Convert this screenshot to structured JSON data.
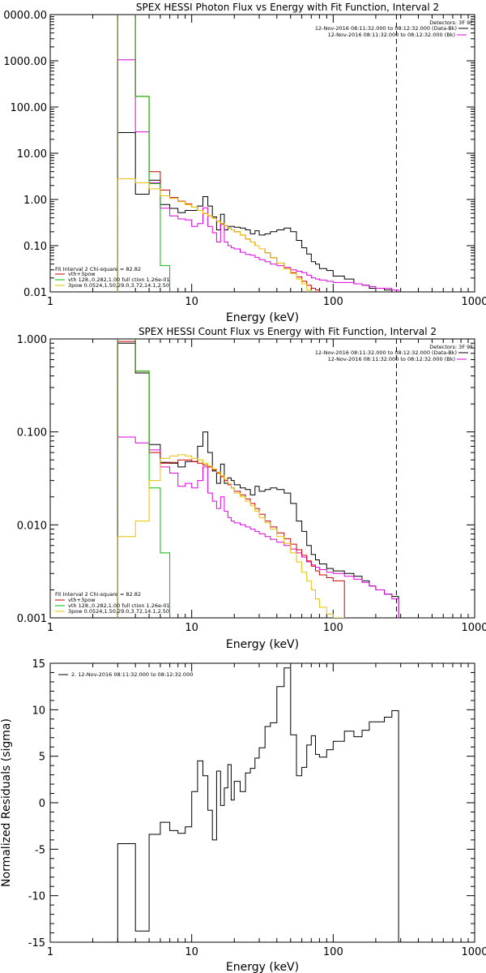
{
  "colors": {
    "data": "#000000",
    "total_fit": "#cc0000",
    "thermal": "#00c000",
    "power_law": "#e6c000",
    "background": "#e000e0",
    "threshold": "#cc6600"
  },
  "chart_data": [
    {
      "type": "line",
      "title": "SPEX HESSI Photon Flux vs Energy with Fit Function, Interval 2",
      "xlabel": "Energy (keV)",
      "ylabel": "",
      "xscale": "log",
      "yscale": "log",
      "xlim": [
        1,
        1000
      ],
      "ylim": [
        0.01,
        10000
      ],
      "x_tick_labels": [
        "1",
        "10",
        "100",
        "1000"
      ],
      "y_tick_labels": [
        "0.01",
        "0.10",
        "1.00",
        "10.00",
        "100.00",
        "1000.00",
        "0000.00"
      ],
      "detector_label": "Detectors: 3F 9F",
      "legend_top": [
        {
          "text": "12-Nov-2016 08:11:32.000 to 08:12:32.000 (Data-Bk)",
          "color": "#000000"
        },
        {
          "text": "12-Nov-2016 08:11:32.000 to 08:12:32.000 (Bk)",
          "color": "#e000e0"
        }
      ],
      "fit_label": "Fit Interval 2   Chi-square = 82.82",
      "legend_bottom": [
        {
          "text": "vth+3pow",
          "color": "#cc0000"
        },
        {
          "text": "vth 128.,0.282,1.00  full ction 1.26e-01",
          "color": "#00c000"
        },
        {
          "text": "3pow 0.0524,1.50,29.0,3.72,14.1,2.50",
          "color": "#e6c000"
        }
      ],
      "vline_dashed_x": 280,
      "vline_dotted_x": 3,
      "edges": [
        3,
        4,
        5,
        6,
        7,
        8,
        9,
        10,
        11,
        12,
        13,
        14,
        15,
        16,
        17,
        18,
        19,
        20,
        22,
        24,
        26,
        28,
        30,
        33,
        36,
        40,
        45,
        50,
        55,
        60,
        65,
        70,
        75,
        80,
        90,
        100,
        120,
        140,
        160,
        180,
        200,
        230,
        260,
        290
      ],
      "series": [
        {
          "name": "data",
          "color": "#000000",
          "values": [
            28,
            1.3,
            2.6,
            0.78,
            0.64,
            0.52,
            0.58,
            0.58,
            0.72,
            1.15,
            0.72,
            0.42,
            0.22,
            0.48,
            0.22,
            0.26,
            0.26,
            0.25,
            0.24,
            0.22,
            0.18,
            0.21,
            0.17,
            0.18,
            0.2,
            0.22,
            0.24,
            0.2,
            0.13,
            0.09,
            0.066,
            0.045,
            0.04,
            0.032,
            0.029,
            0.022,
            0.019,
            0.015,
            0.014,
            0.012,
            0.012,
            0.011,
            0.01
          ]
        },
        {
          "name": "background",
          "color": "#e000e0",
          "values": [
            1050,
            29,
            2.3,
            0.65,
            0.44,
            0.38,
            0.36,
            0.26,
            0.3,
            0.66,
            0.26,
            0.19,
            0.12,
            0.29,
            0.12,
            0.1,
            0.09,
            0.085,
            0.072,
            0.065,
            0.062,
            0.056,
            0.05,
            0.045,
            0.04,
            0.037,
            0.034,
            0.03,
            0.028,
            0.026,
            0.023,
            0.02,
            0.019,
            0.018,
            0.017,
            0.016,
            0.016,
            0.015,
            0.014,
            0.013,
            0.012,
            0.012,
            0.011
          ]
        },
        {
          "name": "total_fit",
          "color": "#cc0000",
          "values": [
            180000,
            170,
            4,
            1.6,
            1.1,
            0.92,
            0.8,
            0.68,
            0.58,
            0.5,
            0.44,
            0.39,
            0.34,
            0.3,
            0.27,
            0.24,
            0.22,
            0.2,
            0.17,
            0.14,
            0.12,
            0.1,
            0.085,
            0.07,
            0.055,
            0.042,
            0.032,
            0.026,
            0.021,
            0.017,
            0.014,
            0.012,
            0.011,
            0.0095,
            0.0085
          ]
        },
        {
          "name": "thermal",
          "color": "#00c000",
          "values": [
            180000,
            170,
            2.2,
            0.037
          ]
        },
        {
          "name": "power_law",
          "color": "#e6c000",
          "values": [
            2.8,
            2.3,
            1.7,
            1.2,
            1.05,
            0.9,
            0.78,
            0.68,
            0.58,
            0.5,
            0.44,
            0.39,
            0.34,
            0.3,
            0.27,
            0.24,
            0.22,
            0.2,
            0.17,
            0.14,
            0.12,
            0.1,
            0.085,
            0.07,
            0.055,
            0.042,
            0.032,
            0.025,
            0.019,
            0.015,
            0.011,
            0.008
          ]
        }
      ]
    },
    {
      "type": "line",
      "title": "SPEX HESSI Count Flux vs Energy with Fit Function, Interval 2",
      "xlabel": "Energy (keV)",
      "ylabel": "",
      "xscale": "log",
      "yscale": "log",
      "xlim": [
        1,
        1000
      ],
      "ylim": [
        0.001,
        1
      ],
      "x_tick_labels": [
        "1",
        "10",
        "100",
        "1000"
      ],
      "y_tick_labels": [
        "0.001",
        "0.010",
        "0.100",
        "1.000"
      ],
      "detector_label": "Detectors: 3F 9F",
      "legend_top": [
        {
          "text": "12-Nov-2016 08:11:32.000 to 08:12:32.000 (Data-Bk)",
          "color": "#000000"
        },
        {
          "text": "12-Nov-2016 08:11:32.000 to 08:12:32.000 (Bk)",
          "color": "#e000e0"
        }
      ],
      "fit_label": "Fit Interval 2   Chi-square = 82.82",
      "legend_bottom": [
        {
          "text": "vth+3pow",
          "color": "#cc0000"
        },
        {
          "text": "vth 128.,0.282,1.00  full ction 1.26e-01",
          "color": "#00c000"
        },
        {
          "text": "3pow 0.0524,1.50,29.0,3.72,14.1,2.50",
          "color": "#e6c000"
        }
      ],
      "vline_dashed_x": 280,
      "vline_dotted_x": 3,
      "edges": [
        3,
        4,
        5,
        6,
        7,
        8,
        9,
        10,
        11,
        12,
        13,
        14,
        15,
        16,
        17,
        18,
        19,
        20,
        22,
        24,
        26,
        28,
        30,
        33,
        36,
        40,
        45,
        50,
        55,
        60,
        65,
        70,
        75,
        80,
        90,
        100,
        120,
        140,
        160,
        180,
        200,
        230,
        260,
        290
      ],
      "series": [
        {
          "name": "data",
          "color": "#000000",
          "values": [
            0.9,
            0.43,
            0.073,
            0.047,
            0.046,
            0.042,
            0.048,
            0.048,
            0.07,
            0.1,
            0.06,
            0.038,
            0.028,
            0.045,
            0.028,
            0.032,
            0.03,
            0.027,
            0.025,
            0.024,
            0.021,
            0.026,
            0.023,
            0.024,
            0.025,
            0.024,
            0.022,
            0.017,
            0.011,
            0.0085,
            0.006,
            0.0048,
            0.0042,
            0.0038,
            0.0034,
            0.0032,
            0.003,
            0.0028,
            0.0025,
            0.0022,
            0.002,
            0.0018,
            0.0017
          ]
        },
        {
          "name": "background",
          "color": "#e000e0",
          "values": [
            0.088,
            0.076,
            0.064,
            0.042,
            0.036,
            0.026,
            0.028,
            0.025,
            0.03,
            0.042,
            0.022,
            0.018,
            0.015,
            0.02,
            0.014,
            0.012,
            0.011,
            0.0105,
            0.01,
            0.0095,
            0.009,
            0.0085,
            0.008,
            0.0075,
            0.007,
            0.0065,
            0.006,
            0.0055,
            0.005,
            0.0045,
            0.004,
            0.0037,
            0.0035,
            0.0033,
            0.0031,
            0.003,
            0.0028,
            0.0026,
            0.0024,
            0.0022,
            0.002,
            0.0018,
            0.0016
          ]
        },
        {
          "name": "total_fit",
          "color": "#cc0000",
          "values": [
            0.94,
            0.45,
            0.06,
            0.046,
            0.047,
            0.05,
            0.05,
            0.048,
            0.046,
            0.044,
            0.042,
            0.039,
            0.036,
            0.033,
            0.03,
            0.027,
            0.025,
            0.023,
            0.021,
            0.019,
            0.017,
            0.015,
            0.013,
            0.011,
            0.0095,
            0.0082,
            0.0071,
            0.0062,
            0.0054,
            0.0047,
            0.0041,
            0.0036,
            0.0032,
            0.0029,
            0.0027,
            0.0025
          ]
        },
        {
          "name": "thermal",
          "color": "#00c000",
          "values": [
            1.2,
            0.45,
            0.025,
            0.005
          ]
        },
        {
          "name": "power_law",
          "color": "#e6c000",
          "values": [
            0.0075,
            0.011,
            0.03,
            0.052,
            0.055,
            0.057,
            0.055,
            0.052,
            0.05,
            0.046,
            0.043,
            0.04,
            0.037,
            0.034,
            0.031,
            0.028,
            0.025,
            0.022,
            0.02,
            0.018,
            0.016,
            0.014,
            0.012,
            0.0105,
            0.009,
            0.0075,
            0.0063,
            0.005,
            0.004,
            0.0031,
            0.0025,
            0.002,
            0.0016,
            0.0013,
            0.0011,
            0.001
          ]
        }
      ]
    },
    {
      "type": "line",
      "title": "",
      "xlabel": "Energy (keV)",
      "ylabel": "Normalized Residuals (sigma)",
      "xscale": "log",
      "yscale": "linear",
      "xlim": [
        1,
        1000
      ],
      "ylim": [
        -15,
        15
      ],
      "x_tick_labels": [
        "1",
        "10",
        "100",
        "1000"
      ],
      "y_tick_labels": [
        "-15",
        "-10",
        "-5",
        "0",
        "5",
        "10",
        "15"
      ],
      "legend_top": [
        {
          "text": "2. 12-Nov-2016 08:11:32.000 to 08:12:32.000",
          "color": "#000000"
        }
      ],
      "edges": [
        3,
        4,
        5,
        6,
        7,
        8,
        9,
        10,
        11,
        12,
        13,
        14,
        15,
        16,
        17,
        18,
        19,
        20,
        22,
        24,
        26,
        28,
        30,
        33,
        36,
        40,
        45,
        50,
        55,
        60,
        65,
        70,
        75,
        80,
        90,
        100,
        120,
        140,
        160,
        180,
        200,
        230,
        260,
        290
      ],
      "series": [
        {
          "name": "residuals",
          "color": "#000000",
          "values": [
            -4.4,
            -13.8,
            -3.4,
            -2.1,
            -3.0,
            -3.3,
            -2.6,
            1.2,
            4.5,
            2.9,
            -0.8,
            -4.0,
            3.4,
            -0.3,
            1.6,
            4.1,
            0.3,
            2.3,
            1.2,
            3.2,
            3.7,
            4.8,
            5.9,
            8.2,
            8.6,
            12.5,
            14.5,
            7.3,
            2.9,
            3.8,
            6.2,
            7.2,
            5.2,
            4.9,
            5.7,
            6.6,
            7.7,
            7.1,
            7.8,
            8.7,
            8.7,
            9.2,
            9.9
          ]
        }
      ]
    }
  ]
}
